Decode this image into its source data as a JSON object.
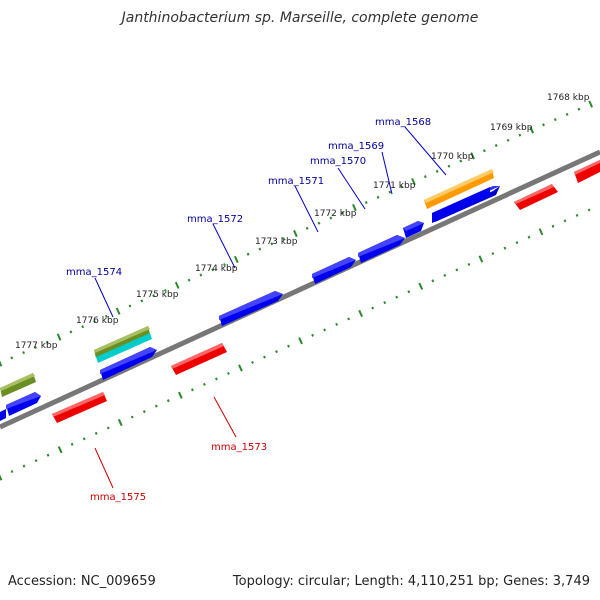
{
  "title": "Janthinobacterium sp. Marseille, complete genome",
  "footer": {
    "accession": "Accession: NC_009659",
    "summary": "Topology: circular; Length: 4,110,251 bp; Genes: 3,749"
  },
  "colors": {
    "forward": "#0000ee",
    "reverse": "#ee0000",
    "orange": "#ff9900",
    "olive": "#6b8e23",
    "cyan": "#00cccc",
    "backbone": "#777777",
    "dots": "#2a8a2a",
    "label_forward": "#000099",
    "label_reverse": "#cc0000"
  },
  "tick_labels": [
    "1768 kbp",
    "1769 kbp",
    "1770 kbp",
    "1771 kbp",
    "1772 kbp",
    "1773 kbp",
    "1774 kbp",
    "1775 kbp",
    "1776 kbp",
    "1777 kbp"
  ],
  "gene_labels_forward": [
    "mma_1568",
    "mma_1569",
    "mma_1570",
    "mma_1571",
    "mma_1572",
    "mma_1574"
  ],
  "gene_labels_reverse": [
    "mma_1573",
    "mma_1575"
  ]
}
